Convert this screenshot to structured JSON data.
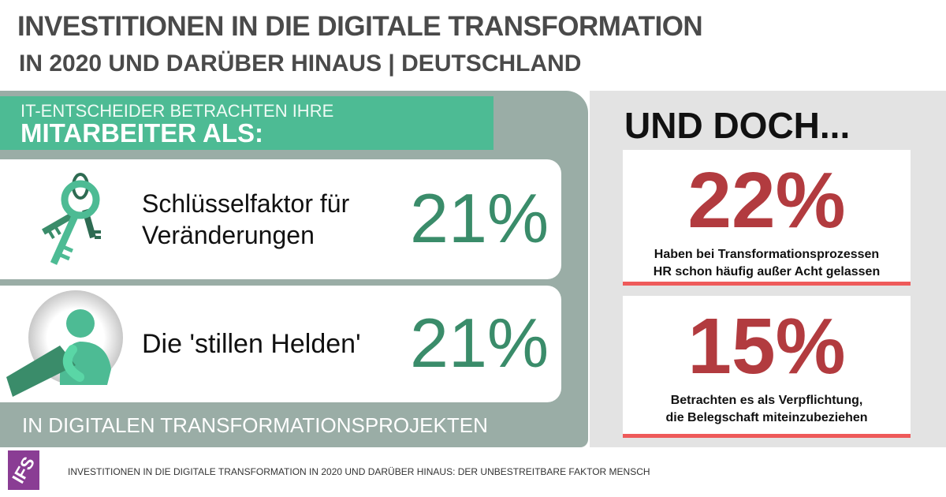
{
  "header": {
    "title": "INVESTITIONEN IN DIE DIGITALE TRANSFORMATION",
    "subtitle": "IN 2020 UND DARÜBER HINAUS | DEUTSCHLAND"
  },
  "left": {
    "band_line1": "IT-ENTSCHEIDER BETRACHTEN IHRE",
    "band_line2": "MITARBEITER ALS:",
    "rows": [
      {
        "icon": "keys-icon",
        "line1": "Schlüsselfaktor für",
        "line2": "Veränderungen",
        "value": "21%"
      },
      {
        "icon": "hero-person-icon",
        "line1": "Die 'stillen Helden'",
        "value": "21%"
      }
    ],
    "footer": "IN DIGITALEN TRANSFORMATIONSPROJEKTEN"
  },
  "right": {
    "heading": "UND DOCH...",
    "cards": [
      {
        "value": "22%",
        "line1": "Haben bei Transformationsprozessen",
        "line2": "HR schon häufig außer Acht gelassen"
      },
      {
        "value": "15%",
        "line1": "Betrachten es als Verpflichtung,",
        "line2": "die Belegschaft miteinzubeziehen"
      }
    ]
  },
  "footer": {
    "logo": "IFS",
    "source": "INVESTITIONEN IN DIE DIGITALE TRANSFORMATION IN 2020 UND DARÜBER HINAUS: DER UNBESTREITBARE FAKTOR MENSCH"
  },
  "colors": {
    "green": "#4dbb94",
    "dark_green": "#3a8c6a",
    "red": "#b23b3f",
    "accent_line": "#ee5a5a",
    "logo": "#8a3d94",
    "panel": "#9aada6"
  }
}
